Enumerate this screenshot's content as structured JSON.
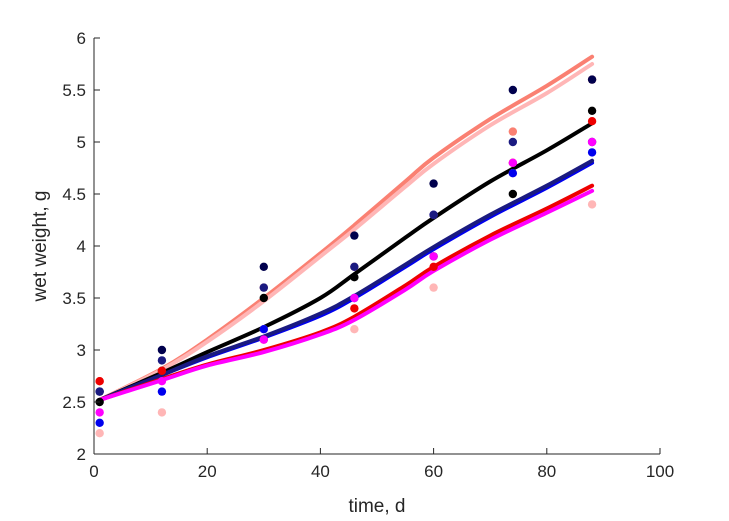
{
  "chart_data": {
    "type": "scatter",
    "title": "",
    "xlabel": "time, d",
    "ylabel": "wet weight, g",
    "xlim": [
      0,
      100
    ],
    "ylim": [
      2,
      6
    ],
    "xticks": [
      0,
      20,
      40,
      60,
      80,
      100
    ],
    "yticks": [
      2,
      2.5,
      3,
      3.5,
      4,
      4.5,
      5,
      5.5,
      6
    ],
    "xtick_labels": [
      "0",
      "20",
      "40",
      "60",
      "80",
      "100"
    ],
    "ytick_labels": [
      "2",
      "2.5",
      "3",
      "3.5",
      "4",
      "4.5",
      "5",
      "5.5",
      "6"
    ],
    "grid": false,
    "legend": "none",
    "x": [
      1,
      12,
      30,
      46,
      60,
      74,
      88
    ],
    "series": [
      {
        "color": "#fa8072",
        "points": [
          2.7,
          2.8,
          3.6,
          3.8,
          4.3,
          5.1,
          5.6
        ],
        "fit": [
          [
            1,
            2.52
          ],
          [
            12,
            2.82
          ],
          [
            20,
            3.1
          ],
          [
            30,
            3.5
          ],
          [
            40,
            3.93
          ],
          [
            46,
            4.2
          ],
          [
            55,
            4.62
          ],
          [
            60,
            4.85
          ],
          [
            70,
            5.22
          ],
          [
            80,
            5.54
          ],
          [
            88,
            5.82
          ]
        ]
      },
      {
        "color": "#ffb6b6",
        "points": [
          2.2,
          2.4,
          3.2,
          3.2,
          3.6,
          4.7,
          4.4
        ],
        "fit": [
          [
            1,
            2.52
          ],
          [
            12,
            2.81
          ],
          [
            20,
            3.08
          ],
          [
            30,
            3.47
          ],
          [
            40,
            3.9
          ],
          [
            46,
            4.16
          ],
          [
            55,
            4.57
          ],
          [
            60,
            4.79
          ],
          [
            70,
            5.16
          ],
          [
            80,
            5.47
          ],
          [
            88,
            5.75
          ]
        ]
      },
      {
        "color": "#000000",
        "points": [
          2.5,
          2.8,
          3.5,
          3.7,
          3.9,
          4.5,
          5.3
        ],
        "fit": [
          [
            1,
            2.52
          ],
          [
            12,
            2.78
          ],
          [
            20,
            2.98
          ],
          [
            30,
            3.22
          ],
          [
            40,
            3.5
          ],
          [
            46,
            3.73
          ],
          [
            55,
            4.08
          ],
          [
            60,
            4.27
          ],
          [
            70,
            4.62
          ],
          [
            80,
            4.92
          ],
          [
            88,
            5.18
          ]
        ]
      },
      {
        "color": "#00004d",
        "points": [
          2.6,
          3.0,
          3.8,
          4.1,
          4.6,
          5.5,
          5.6
        ],
        "fit": []
      },
      {
        "color": "#0000ee",
        "points": [
          2.3,
          2.6,
          3.2,
          3.5,
          4.3,
          4.7,
          4.9
        ],
        "fit": [
          [
            1,
            2.52
          ],
          [
            12,
            2.76
          ],
          [
            20,
            2.93
          ],
          [
            30,
            3.12
          ],
          [
            40,
            3.33
          ],
          [
            46,
            3.5
          ],
          [
            55,
            3.8
          ],
          [
            60,
            3.97
          ],
          [
            70,
            4.28
          ],
          [
            80,
            4.56
          ],
          [
            88,
            4.8
          ]
        ]
      },
      {
        "color": "#1a1a80",
        "points": [
          2.6,
          2.9,
          3.6,
          3.8,
          4.3,
          5.0,
          5.0
        ],
        "fit": [
          [
            1,
            2.52
          ],
          [
            12,
            2.76
          ],
          [
            20,
            2.94
          ],
          [
            30,
            3.13
          ],
          [
            40,
            3.35
          ],
          [
            46,
            3.52
          ],
          [
            55,
            3.82
          ],
          [
            60,
            3.99
          ],
          [
            70,
            4.3
          ],
          [
            80,
            4.58
          ],
          [
            88,
            4.82
          ]
        ]
      },
      {
        "color": "#ee0000",
        "points": [
          2.7,
          2.8,
          3.1,
          3.4,
          3.8,
          4.8,
          5.2
        ],
        "fit": [
          [
            1,
            2.52
          ],
          [
            12,
            2.72
          ],
          [
            20,
            2.86
          ],
          [
            30,
            3.0
          ],
          [
            40,
            3.17
          ],
          [
            46,
            3.32
          ],
          [
            55,
            3.62
          ],
          [
            60,
            3.8
          ],
          [
            70,
            4.1
          ],
          [
            80,
            4.36
          ],
          [
            88,
            4.58
          ]
        ]
      },
      {
        "color": "#ff00ff",
        "points": [
          2.4,
          2.7,
          3.1,
          3.5,
          3.9,
          4.8,
          5.0
        ],
        "fit": [
          [
            1,
            2.52
          ],
          [
            12,
            2.71
          ],
          [
            20,
            2.85
          ],
          [
            30,
            2.98
          ],
          [
            40,
            3.15
          ],
          [
            46,
            3.29
          ],
          [
            55,
            3.58
          ],
          [
            60,
            3.76
          ],
          [
            70,
            4.06
          ],
          [
            80,
            4.32
          ],
          [
            88,
            4.53
          ]
        ]
      }
    ]
  }
}
